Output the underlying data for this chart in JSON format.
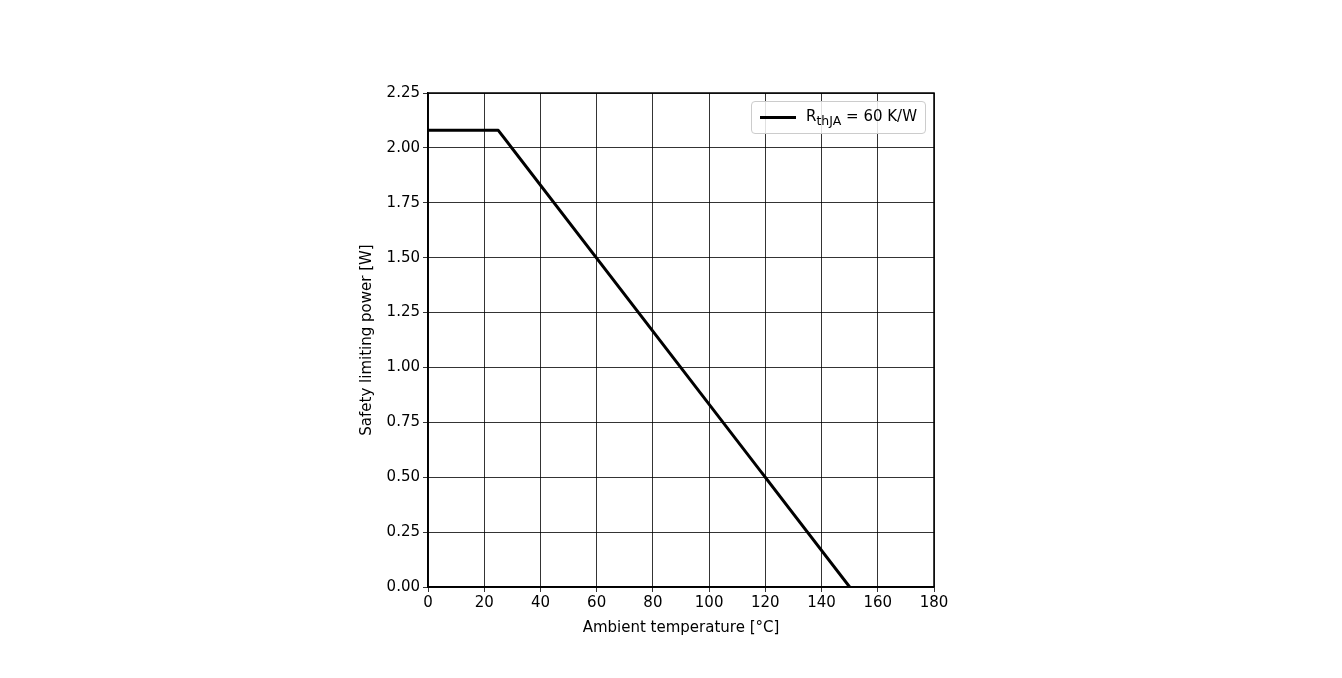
{
  "chart_data": {
    "type": "line",
    "xlabel": "Ambient temperature [°C]",
    "ylabel": "Safety limiting power [W]",
    "x": [
      0,
      25,
      150
    ],
    "series": [
      {
        "name": "R$_{thJA}$ = 60 K/W",
        "color": "#000000",
        "values": [
          2.08,
          2.08,
          0
        ]
      }
    ],
    "xlim": [
      0,
      180
    ],
    "xticks": [
      0,
      20,
      40,
      60,
      80,
      100,
      120,
      140,
      160,
      180
    ],
    "ylim": [
      0,
      2.25
    ],
    "yticks": [
      {
        "value": 0,
        "label": "0.00"
      },
      {
        "value": 0.25,
        "label": "0.25"
      },
      {
        "value": 0.5,
        "label": "0.50"
      },
      {
        "value": 0.75,
        "label": "0.75"
      },
      {
        "value": 1,
        "label": "1.00"
      },
      {
        "value": 1.25,
        "label": "1.25"
      },
      {
        "value": 1.5,
        "label": "1.50"
      },
      {
        "value": 1.75,
        "label": "1.75"
      },
      {
        "value": 2,
        "label": "2.00"
      },
      {
        "value": 2.25,
        "label": "2.25"
      }
    ],
    "grid": true,
    "legend": "top right",
    "marker": "none",
    "line_style": "solid"
  }
}
